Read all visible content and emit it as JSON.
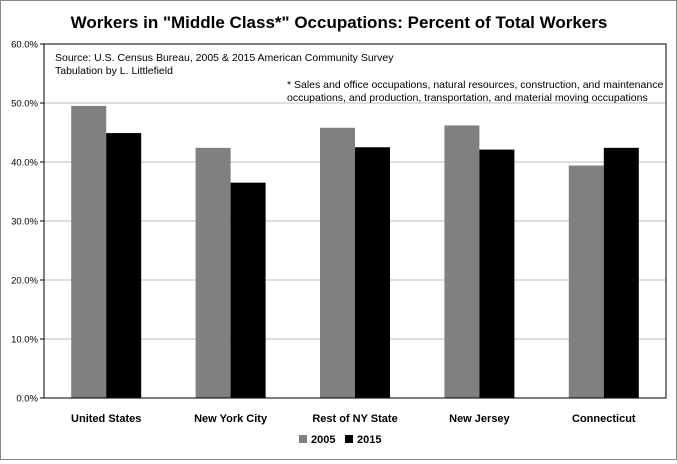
{
  "chart_data": {
    "type": "bar",
    "title": "Workers in \"Middle Class*\" Occupations:  Percent of Total Workers",
    "xlabel": "",
    "ylabel": "",
    "categories": [
      "United States",
      "New York City",
      "Rest of NY State",
      "New Jersey",
      "Connecticut"
    ],
    "series": [
      {
        "name": "2005",
        "color": "#808080",
        "values": [
          49.5,
          42.4,
          45.8,
          46.2,
          39.4
        ]
      },
      {
        "name": "2015",
        "color": "#000000",
        "values": [
          44.9,
          36.5,
          42.5,
          42.1,
          42.4
        ]
      }
    ],
    "ylim": [
      0,
      60
    ],
    "yticks": [
      0,
      10,
      20,
      30,
      40,
      50,
      60
    ],
    "ytick_labels": [
      "0.0%",
      "10.0%",
      "20.0%",
      "30.0%",
      "40.0%",
      "50.0%",
      "60.0%"
    ],
    "grid": true,
    "legend_position": "bottom",
    "annotations": {
      "source_line1": "Source:  U.S. Census Bureau, 2005 & 2015 American Community Survey",
      "source_line2": "Tabulation by L. Littlefield",
      "footnote_line1": "* Sales and office occupations, natural resources, construction, and maintenance",
      "footnote_line2": "occupations, and production, transportation, and material moving occupations"
    }
  }
}
